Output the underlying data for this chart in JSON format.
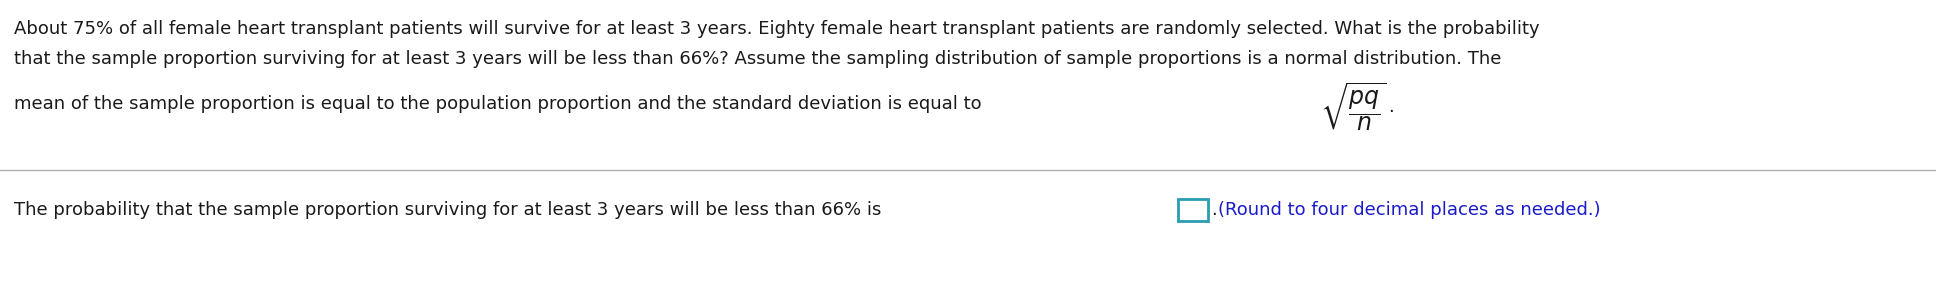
{
  "line1": "About 75% of all female heart transplant patients will survive for at least 3 years. Eighty female heart transplant patients are randomly selected. What is the probability",
  "line2": "that the sample proportion surviving for at least 3 years will be less than 66%? Assume the sampling distribution of sample proportions is a normal distribution. The",
  "line3_prefix": "mean of the sample proportion is equal to the population proportion and the standard deviation is equal to",
  "line3_suffix": ".",
  "line4_prefix": "The probability that the sample proportion surviving for at least 3 years will be less than 66% is",
  "line4_suffix": "(Round to four decimal places as needed.)",
  "bg_color": "#ffffff",
  "text_color": "#1a1a1a",
  "blue_color": "#1a1acc",
  "box_color": "#2a9db0",
  "divider_color": "#b0b0b0",
  "font_size": 13.0
}
